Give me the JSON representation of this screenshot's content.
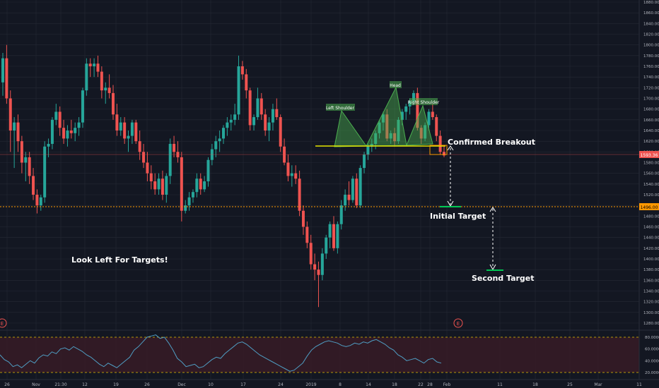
{
  "colors": {
    "background": "#131722",
    "grid": "#242834",
    "up": "#26a69a",
    "down": "#ef5350",
    "pattern_fill": "#4caf50",
    "neckline": "#e6e600",
    "support": "#ff9800",
    "target_mark": "#00c853",
    "rsi_line": "#4f9ec4",
    "rsi_band": "#3a1c27",
    "text": "#ffffff",
    "axis_text": "#b2b5be",
    "current_price_bg": "#ef5350",
    "support_price_bg": "#ff9800"
  },
  "price_axis": {
    "ticks": [
      "1880.00",
      "1860.00",
      "1840.00",
      "1820.00",
      "1800.00",
      "1780.00",
      "1760.00",
      "1740.00",
      "1720.00",
      "1700.00",
      "1680.00",
      "1660.00",
      "1640.00",
      "1620.00",
      "1600.00",
      "1580.00",
      "1560.00",
      "1540.00",
      "1520.00",
      "1500.00",
      "1480.00",
      "1460.00",
      "1440.00",
      "1420.00",
      "1400.00",
      "1380.00",
      "1360.00",
      "1340.00",
      "1320.00",
      "1300.00",
      "1280.00"
    ],
    "current_price_label": "1593.36",
    "support_price_label": "1496.00"
  },
  "time_axis": {
    "ticks": [
      "26",
      "Nov",
      "21:30",
      "12",
      "19",
      "26",
      "Dec",
      "10",
      "17",
      "24",
      "2019",
      "8",
      "14",
      "18",
      "22",
      "28",
      "Feb",
      "11",
      "18",
      "25",
      "Mar",
      "11"
    ]
  },
  "rsi_axis": {
    "ticks": [
      "80.0000",
      "60.0000",
      "40.0000",
      "20.0000"
    ]
  },
  "annotations": {
    "look_left": "Look Left For Targets!",
    "confirmed_breakout": "Confirmed Breakout",
    "initial_target": "Initial Target",
    "second_target": "Second Target",
    "left_shoulder": "Left Shoulder",
    "head": "Head",
    "right_shoulder": "Right Shoulder",
    "earnings_badge": "E"
  },
  "chart_data": [
    {
      "type": "candlestick",
      "x_labels": [
        "Oct 26",
        "Nov",
        "21:30",
        "Nov 12",
        "Nov 19",
        "Nov 26",
        "Dec",
        "Dec 10",
        "Dec 17",
        "Dec 24",
        "2019",
        "Jan 8",
        "Jan 14",
        "Jan 18",
        "Jan 22",
        "Jan 28",
        "Feb",
        "Feb 11",
        "Feb 18",
        "Feb 25",
        "Mar",
        "Mar 11"
      ],
      "ylim": [
        1270,
        1890
      ],
      "candles": [
        [
          1730,
          1785,
          1705,
          1775
        ],
        [
          1775,
          1800,
          1690,
          1700
        ],
        [
          1700,
          1715,
          1600,
          1640
        ],
        [
          1640,
          1665,
          1570,
          1655
        ],
        [
          1655,
          1670,
          1600,
          1620
        ],
        [
          1620,
          1630,
          1560,
          1580
        ],
        [
          1580,
          1600,
          1545,
          1590
        ],
        [
          1590,
          1600,
          1540,
          1555
        ],
        [
          1555,
          1570,
          1510,
          1520
        ],
        [
          1520,
          1530,
          1485,
          1500
        ],
        [
          1500,
          1520,
          1490,
          1515
        ],
        [
          1515,
          1620,
          1505,
          1610
        ],
        [
          1610,
          1625,
          1590,
          1615
        ],
        [
          1615,
          1665,
          1605,
          1660
        ],
        [
          1660,
          1690,
          1650,
          1675
        ],
        [
          1675,
          1685,
          1630,
          1645
        ],
        [
          1645,
          1660,
          1615,
          1625
        ],
        [
          1625,
          1650,
          1610,
          1640
        ],
        [
          1640,
          1660,
          1625,
          1635
        ],
        [
          1635,
          1655,
          1620,
          1645
        ],
        [
          1645,
          1665,
          1630,
          1655
        ],
        [
          1655,
          1720,
          1645,
          1715
        ],
        [
          1715,
          1775,
          1705,
          1765
        ],
        [
          1765,
          1775,
          1740,
          1760
        ],
        [
          1760,
          1775,
          1740,
          1765
        ],
        [
          1765,
          1780,
          1740,
          1750
        ],
        [
          1750,
          1760,
          1700,
          1715
        ],
        [
          1715,
          1730,
          1690,
          1720
        ],
        [
          1720,
          1745,
          1700,
          1710
        ],
        [
          1710,
          1725,
          1660,
          1670
        ],
        [
          1670,
          1690,
          1630,
          1640
        ],
        [
          1640,
          1665,
          1630,
          1655
        ],
        [
          1655,
          1665,
          1615,
          1625
        ],
        [
          1625,
          1640,
          1600,
          1630
        ],
        [
          1630,
          1660,
          1615,
          1655
        ],
        [
          1655,
          1660,
          1615,
          1620
        ],
        [
          1620,
          1640,
          1585,
          1600
        ],
        [
          1600,
          1615,
          1570,
          1580
        ],
        [
          1580,
          1600,
          1545,
          1560
        ],
        [
          1560,
          1575,
          1530,
          1545
        ],
        [
          1545,
          1560,
          1520,
          1530
        ],
        [
          1530,
          1560,
          1520,
          1550
        ],
        [
          1550,
          1565,
          1510,
          1520
        ],
        [
          1520,
          1560,
          1505,
          1555
        ],
        [
          1555,
          1625,
          1540,
          1615
        ],
        [
          1615,
          1630,
          1590,
          1600
        ],
        [
          1600,
          1620,
          1580,
          1590
        ],
        [
          1590,
          1600,
          1470,
          1490
        ],
        [
          1490,
          1510,
          1485,
          1500
        ],
        [
          1500,
          1525,
          1490,
          1515
        ],
        [
          1515,
          1530,
          1505,
          1525
        ],
        [
          1525,
          1560,
          1515,
          1550
        ],
        [
          1550,
          1560,
          1520,
          1530
        ],
        [
          1530,
          1555,
          1525,
          1545
        ],
        [
          1545,
          1590,
          1535,
          1585
        ],
        [
          1585,
          1615,
          1575,
          1605
        ],
        [
          1605,
          1630,
          1590,
          1620
        ],
        [
          1620,
          1640,
          1600,
          1625
        ],
        [
          1625,
          1650,
          1615,
          1645
        ],
        [
          1645,
          1665,
          1630,
          1655
        ],
        [
          1655,
          1670,
          1640,
          1660
        ],
        [
          1660,
          1690,
          1650,
          1670
        ],
        [
          1670,
          1780,
          1660,
          1760
        ],
        [
          1760,
          1770,
          1735,
          1745
        ],
        [
          1745,
          1755,
          1700,
          1715
        ],
        [
          1715,
          1720,
          1640,
          1650
        ],
        [
          1650,
          1670,
          1640,
          1665
        ],
        [
          1665,
          1720,
          1660,
          1700
        ],
        [
          1700,
          1710,
          1660,
          1670
        ],
        [
          1670,
          1680,
          1630,
          1640
        ],
        [
          1640,
          1665,
          1620,
          1655
        ],
        [
          1655,
          1690,
          1640,
          1680
        ],
        [
          1680,
          1700,
          1660,
          1665
        ],
        [
          1665,
          1670,
          1600,
          1610
        ],
        [
          1610,
          1625,
          1575,
          1580
        ],
        [
          1580,
          1595,
          1545,
          1555
        ],
        [
          1555,
          1575,
          1535,
          1560
        ],
        [
          1560,
          1575,
          1540,
          1550
        ],
        [
          1550,
          1565,
          1480,
          1490
        ],
        [
          1490,
          1500,
          1445,
          1460
        ],
        [
          1460,
          1470,
          1420,
          1430
        ],
        [
          1430,
          1445,
          1380,
          1390
        ],
        [
          1390,
          1410,
          1360,
          1380
        ],
        [
          1380,
          1395,
          1310,
          1370
        ],
        [
          1370,
          1420,
          1360,
          1410
        ],
        [
          1410,
          1445,
          1400,
          1440
        ],
        [
          1440,
          1470,
          1420,
          1465
        ],
        [
          1465,
          1480,
          1415,
          1420
        ],
        [
          1420,
          1470,
          1410,
          1465
        ],
        [
          1465,
          1510,
          1455,
          1500
        ],
        [
          1500,
          1530,
          1490,
          1520
        ],
        [
          1520,
          1545,
          1500,
          1510
        ],
        [
          1510,
          1555,
          1505,
          1550
        ],
        [
          1550,
          1560,
          1495,
          1500
        ],
        [
          1500,
          1575,
          1495,
          1570
        ],
        [
          1570,
          1600,
          1560,
          1595
        ],
        [
          1595,
          1615,
          1585,
          1610
        ],
        [
          1610,
          1625,
          1600,
          1615
        ],
        [
          1615,
          1640,
          1605,
          1635
        ],
        [
          1635,
          1660,
          1625,
          1655
        ],
        [
          1655,
          1675,
          1640,
          1670
        ],
        [
          1670,
          1680,
          1620,
          1625
        ],
        [
          1625,
          1640,
          1615,
          1635
        ],
        [
          1635,
          1645,
          1610,
          1620
        ],
        [
          1620,
          1665,
          1615,
          1660
        ],
        [
          1660,
          1680,
          1650,
          1675
        ],
        [
          1675,
          1690,
          1660,
          1685
        ],
        [
          1685,
          1700,
          1670,
          1695
        ],
        [
          1695,
          1715,
          1690,
          1710
        ],
        [
          1710,
          1720,
          1640,
          1645
        ],
        [
          1645,
          1650,
          1615,
          1625
        ],
        [
          1625,
          1655,
          1620,
          1650
        ],
        [
          1650,
          1680,
          1640,
          1675
        ],
        [
          1675,
          1690,
          1660,
          1665
        ],
        [
          1665,
          1670,
          1620,
          1630
        ],
        [
          1630,
          1640,
          1595,
          1600
        ],
        [
          1600,
          1610,
          1590,
          1593.36
        ]
      ]
    },
    {
      "type": "line",
      "name": "RSI",
      "ylim": [
        15,
        90
      ],
      "levels": [
        80,
        20
      ],
      "values": [
        50,
        42,
        38,
        30,
        33,
        28,
        34,
        40,
        36,
        45,
        50,
        48,
        55,
        52,
        60,
        62,
        58,
        64,
        60,
        56,
        50,
        46,
        40,
        34,
        30,
        36,
        32,
        28,
        34,
        40,
        46,
        58,
        64,
        72,
        80,
        82,
        84,
        78,
        80,
        70,
        58,
        44,
        38,
        30,
        32,
        34,
        28,
        30,
        36,
        42,
        46,
        44,
        52,
        58,
        64,
        70,
        72,
        68,
        62,
        56,
        50,
        46,
        42,
        38,
        34,
        30,
        26,
        22,
        24,
        30,
        36,
        48,
        58,
        64,
        68,
        72,
        74,
        72,
        70,
        66,
        64,
        66,
        70,
        68,
        72,
        70,
        74,
        76,
        72,
        68,
        62,
        58,
        50,
        46,
        40,
        42,
        44,
        40,
        36,
        42,
        44,
        38,
        36
      ]
    }
  ]
}
